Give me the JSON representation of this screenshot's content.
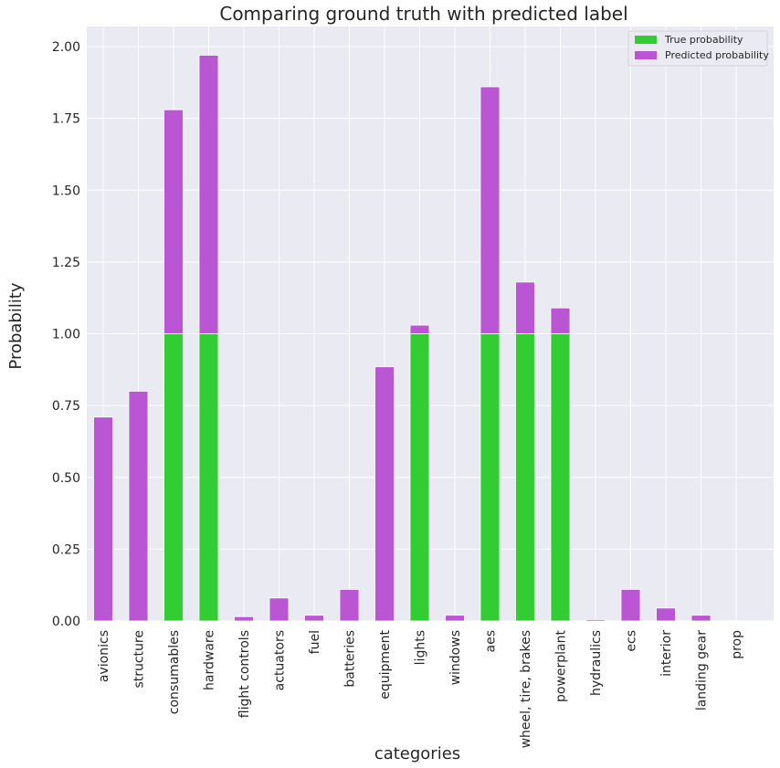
{
  "chart_data": {
    "type": "bar",
    "stacked": true,
    "title": "Comparing ground truth with predicted label",
    "xlabel": "categories",
    "ylabel": "Probability",
    "ylim": [
      0,
      2.07
    ],
    "yticks": [
      "0.00",
      "0.25",
      "0.50",
      "0.75",
      "1.00",
      "1.25",
      "1.50",
      "1.75",
      "2.00"
    ],
    "grid": true,
    "legend_position": "top-right",
    "categories": [
      "avionics",
      "structure",
      "consumables",
      "hardware",
      "flight controls",
      "actuators",
      "fuel",
      "batteries",
      "equipment",
      "lights",
      "windows",
      "aes",
      "wheel, tire, brakes",
      "powerplant",
      "hydraulics",
      "ecs",
      "interior",
      "landing gear",
      "prop"
    ],
    "series": [
      {
        "name": "True probability",
        "color": "#32cd32",
        "values": [
          0,
          0,
          1,
          1,
          0,
          0,
          0,
          0,
          0,
          1,
          0,
          1,
          1,
          1,
          0,
          0,
          0,
          0,
          0
        ]
      },
      {
        "name": "Predicted probability",
        "color": "#ba55d3",
        "values": [
          0.71,
          0.8,
          0.78,
          0.97,
          0.015,
          0.08,
          0.02,
          0.11,
          0.885,
          0.03,
          0.02,
          0.86,
          0.18,
          0.09,
          0.005,
          0.11,
          0.045,
          0.02,
          0
        ]
      }
    ]
  }
}
